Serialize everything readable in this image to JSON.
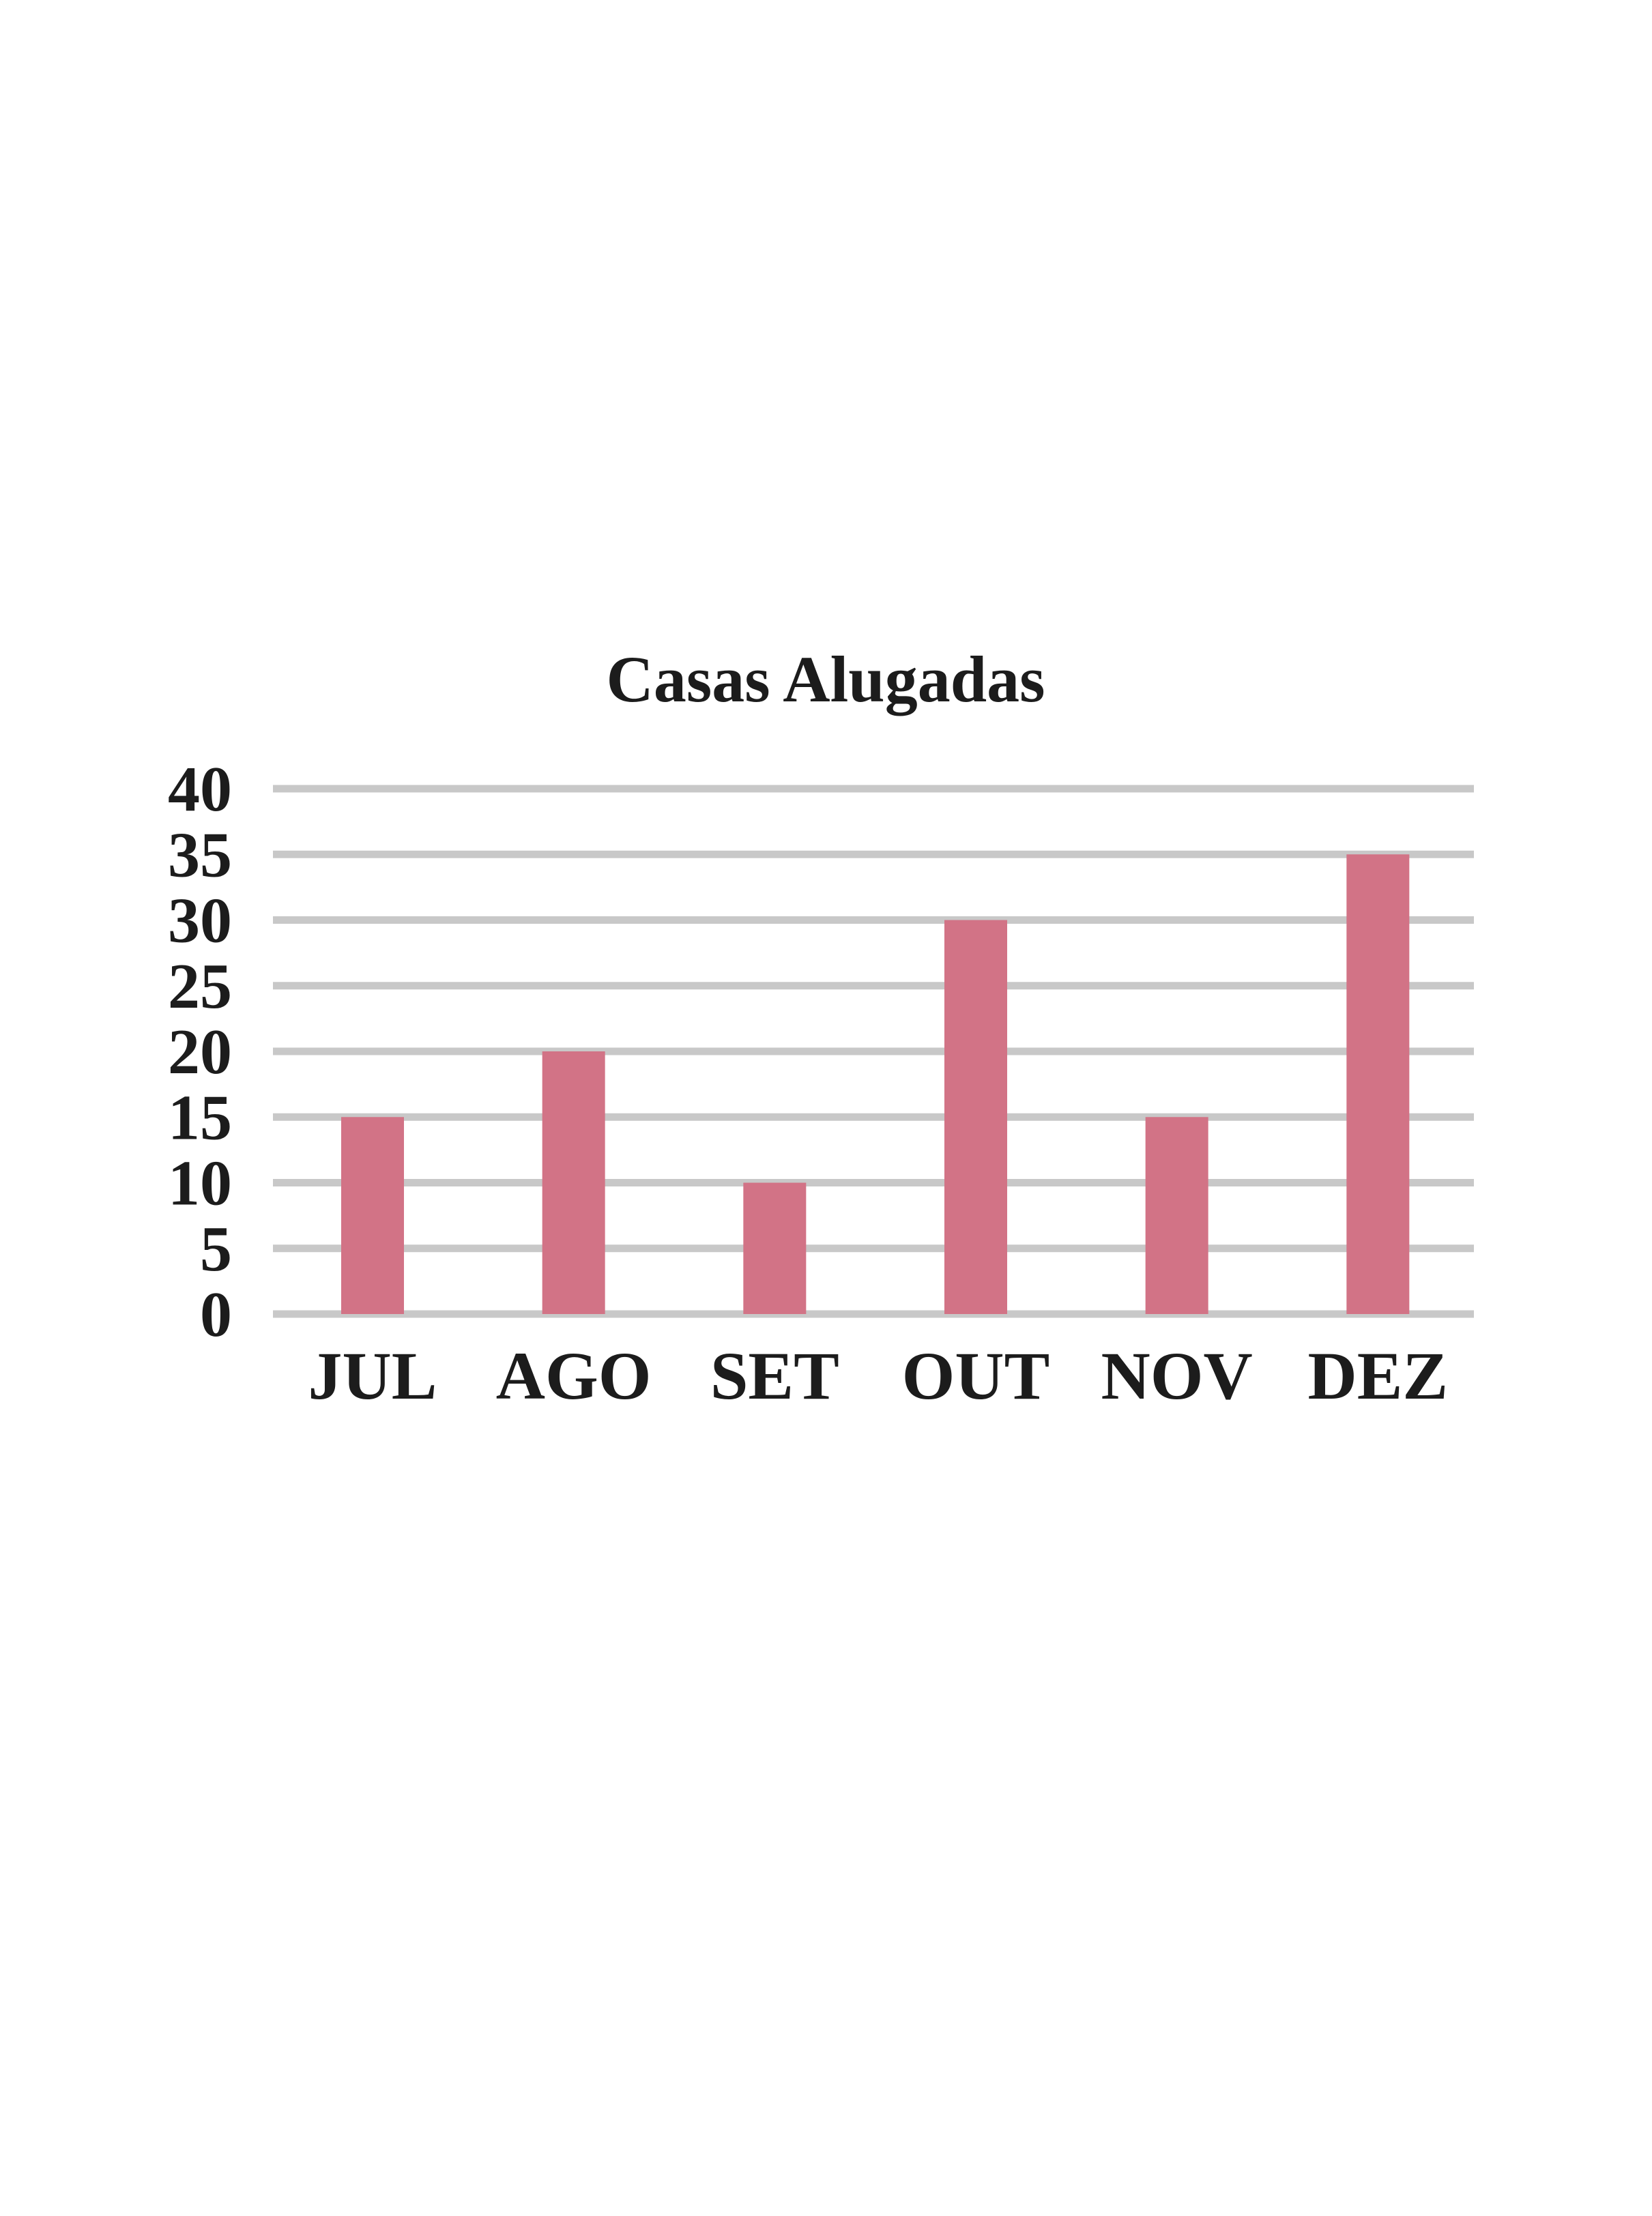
{
  "chart_data": {
    "type": "bar",
    "title": "Casas Alugadas",
    "categories": [
      "JUL",
      "AGO",
      "SET",
      "OUT",
      "NOV",
      "DEZ"
    ],
    "values": [
      15,
      20,
      10,
      30,
      15,
      35
    ],
    "ylim": [
      0,
      40
    ],
    "yticks": [
      0,
      5,
      10,
      15,
      20,
      25,
      30,
      35,
      40
    ],
    "grid": true,
    "legend": "none",
    "colors": {
      "bar": "#d27386",
      "grid": "#c8c8c8",
      "text": "#1c1c1c",
      "background": "#ffffff"
    }
  }
}
